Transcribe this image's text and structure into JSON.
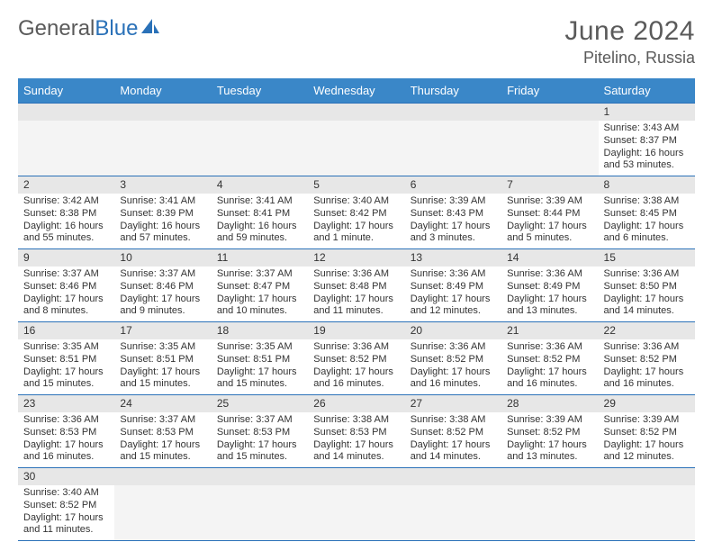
{
  "logo": {
    "part1": "General",
    "part2": "Blue"
  },
  "title": {
    "month": "June 2024",
    "location": "Pitelino, Russia"
  },
  "colors": {
    "header_bg": "#3a87c8",
    "header_text": "#ffffff",
    "accent": "#2a71b8",
    "daynum_bg": "#e7e7e7",
    "body_text": "#333333",
    "logo_grey": "#5a5a5a"
  },
  "weekdays": [
    "Sunday",
    "Monday",
    "Tuesday",
    "Wednesday",
    "Thursday",
    "Friday",
    "Saturday"
  ],
  "weeks": [
    [
      null,
      null,
      null,
      null,
      null,
      null,
      {
        "n": "1",
        "sr": "Sunrise: 3:43 AM",
        "ss": "Sunset: 8:37 PM",
        "dl": "Daylight: 16 hours and 53 minutes."
      }
    ],
    [
      {
        "n": "2",
        "sr": "Sunrise: 3:42 AM",
        "ss": "Sunset: 8:38 PM",
        "dl": "Daylight: 16 hours and 55 minutes."
      },
      {
        "n": "3",
        "sr": "Sunrise: 3:41 AM",
        "ss": "Sunset: 8:39 PM",
        "dl": "Daylight: 16 hours and 57 minutes."
      },
      {
        "n": "4",
        "sr": "Sunrise: 3:41 AM",
        "ss": "Sunset: 8:41 PM",
        "dl": "Daylight: 16 hours and 59 minutes."
      },
      {
        "n": "5",
        "sr": "Sunrise: 3:40 AM",
        "ss": "Sunset: 8:42 PM",
        "dl": "Daylight: 17 hours and 1 minute."
      },
      {
        "n": "6",
        "sr": "Sunrise: 3:39 AM",
        "ss": "Sunset: 8:43 PM",
        "dl": "Daylight: 17 hours and 3 minutes."
      },
      {
        "n": "7",
        "sr": "Sunrise: 3:39 AM",
        "ss": "Sunset: 8:44 PM",
        "dl": "Daylight: 17 hours and 5 minutes."
      },
      {
        "n": "8",
        "sr": "Sunrise: 3:38 AM",
        "ss": "Sunset: 8:45 PM",
        "dl": "Daylight: 17 hours and 6 minutes."
      }
    ],
    [
      {
        "n": "9",
        "sr": "Sunrise: 3:37 AM",
        "ss": "Sunset: 8:46 PM",
        "dl": "Daylight: 17 hours and 8 minutes."
      },
      {
        "n": "10",
        "sr": "Sunrise: 3:37 AM",
        "ss": "Sunset: 8:46 PM",
        "dl": "Daylight: 17 hours and 9 minutes."
      },
      {
        "n": "11",
        "sr": "Sunrise: 3:37 AM",
        "ss": "Sunset: 8:47 PM",
        "dl": "Daylight: 17 hours and 10 minutes."
      },
      {
        "n": "12",
        "sr": "Sunrise: 3:36 AM",
        "ss": "Sunset: 8:48 PM",
        "dl": "Daylight: 17 hours and 11 minutes."
      },
      {
        "n": "13",
        "sr": "Sunrise: 3:36 AM",
        "ss": "Sunset: 8:49 PM",
        "dl": "Daylight: 17 hours and 12 minutes."
      },
      {
        "n": "14",
        "sr": "Sunrise: 3:36 AM",
        "ss": "Sunset: 8:49 PM",
        "dl": "Daylight: 17 hours and 13 minutes."
      },
      {
        "n": "15",
        "sr": "Sunrise: 3:36 AM",
        "ss": "Sunset: 8:50 PM",
        "dl": "Daylight: 17 hours and 14 minutes."
      }
    ],
    [
      {
        "n": "16",
        "sr": "Sunrise: 3:35 AM",
        "ss": "Sunset: 8:51 PM",
        "dl": "Daylight: 17 hours and 15 minutes."
      },
      {
        "n": "17",
        "sr": "Sunrise: 3:35 AM",
        "ss": "Sunset: 8:51 PM",
        "dl": "Daylight: 17 hours and 15 minutes."
      },
      {
        "n": "18",
        "sr": "Sunrise: 3:35 AM",
        "ss": "Sunset: 8:51 PM",
        "dl": "Daylight: 17 hours and 15 minutes."
      },
      {
        "n": "19",
        "sr": "Sunrise: 3:36 AM",
        "ss": "Sunset: 8:52 PM",
        "dl": "Daylight: 17 hours and 16 minutes."
      },
      {
        "n": "20",
        "sr": "Sunrise: 3:36 AM",
        "ss": "Sunset: 8:52 PM",
        "dl": "Daylight: 17 hours and 16 minutes."
      },
      {
        "n": "21",
        "sr": "Sunrise: 3:36 AM",
        "ss": "Sunset: 8:52 PM",
        "dl": "Daylight: 17 hours and 16 minutes."
      },
      {
        "n": "22",
        "sr": "Sunrise: 3:36 AM",
        "ss": "Sunset: 8:52 PM",
        "dl": "Daylight: 17 hours and 16 minutes."
      }
    ],
    [
      {
        "n": "23",
        "sr": "Sunrise: 3:36 AM",
        "ss": "Sunset: 8:53 PM",
        "dl": "Daylight: 17 hours and 16 minutes."
      },
      {
        "n": "24",
        "sr": "Sunrise: 3:37 AM",
        "ss": "Sunset: 8:53 PM",
        "dl": "Daylight: 17 hours and 15 minutes."
      },
      {
        "n": "25",
        "sr": "Sunrise: 3:37 AM",
        "ss": "Sunset: 8:53 PM",
        "dl": "Daylight: 17 hours and 15 minutes."
      },
      {
        "n": "26",
        "sr": "Sunrise: 3:38 AM",
        "ss": "Sunset: 8:53 PM",
        "dl": "Daylight: 17 hours and 14 minutes."
      },
      {
        "n": "27",
        "sr": "Sunrise: 3:38 AM",
        "ss": "Sunset: 8:52 PM",
        "dl": "Daylight: 17 hours and 14 minutes."
      },
      {
        "n": "28",
        "sr": "Sunrise: 3:39 AM",
        "ss": "Sunset: 8:52 PM",
        "dl": "Daylight: 17 hours and 13 minutes."
      },
      {
        "n": "29",
        "sr": "Sunrise: 3:39 AM",
        "ss": "Sunset: 8:52 PM",
        "dl": "Daylight: 17 hours and 12 minutes."
      }
    ],
    [
      {
        "n": "30",
        "sr": "Sunrise: 3:40 AM",
        "ss": "Sunset: 8:52 PM",
        "dl": "Daylight: 17 hours and 11 minutes."
      },
      null,
      null,
      null,
      null,
      null,
      null
    ]
  ]
}
